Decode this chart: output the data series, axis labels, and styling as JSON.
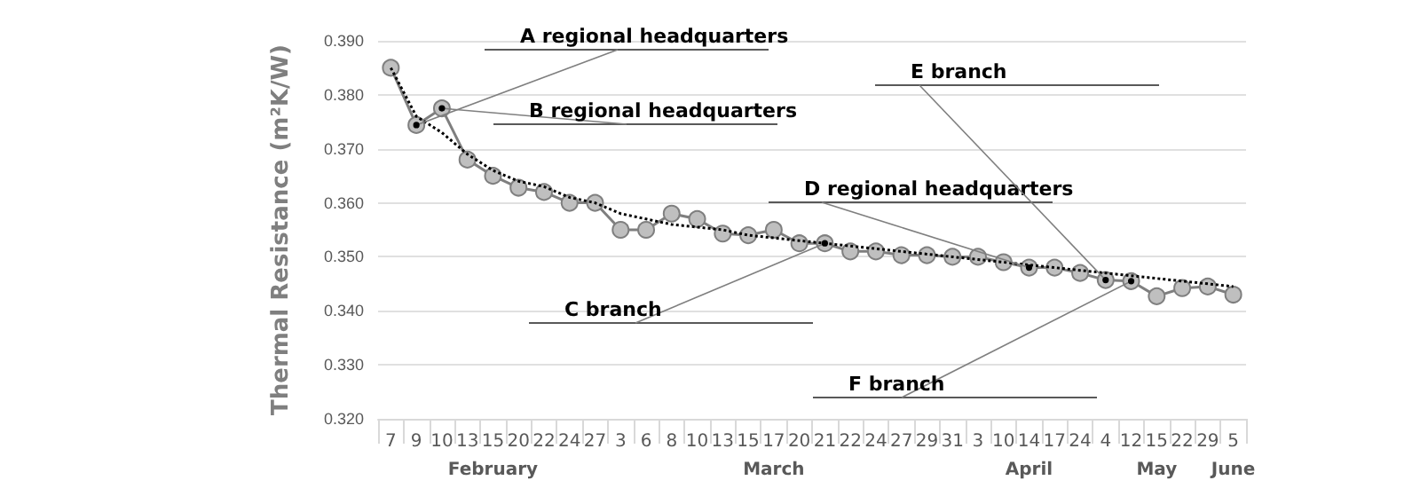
{
  "chart_data": {
    "type": "line",
    "ylabel": "Thermal Resistance (m²K/W)",
    "categories": [
      "7",
      "9",
      "10",
      "13",
      "15",
      "20",
      "22",
      "24",
      "27",
      "3",
      "6",
      "8",
      "10",
      "13",
      "15",
      "17",
      "20",
      "21",
      "22",
      "24",
      "27",
      "29",
      "31",
      "3",
      "10",
      "14",
      "17",
      "24",
      "4",
      "12",
      "15",
      "22",
      "29",
      "5"
    ],
    "series": [
      {
        "color": "#bfbfbf",
        "marker": "circle",
        "line_style": "solid",
        "values": [
          0.385,
          0.3744,
          0.3775,
          0.368,
          0.365,
          0.3628,
          0.362,
          0.36,
          0.36,
          0.355,
          0.355,
          0.358,
          0.357,
          0.3543,
          0.354,
          0.355,
          0.3525,
          0.3525,
          0.351,
          0.351,
          0.3503,
          0.3503,
          0.35,
          0.35,
          0.349,
          0.348,
          0.348,
          0.347,
          0.3457,
          0.3455,
          0.3427,
          0.3442,
          0.3445,
          0.343
        ]
      },
      {
        "color": "#000000",
        "marker": "none",
        "line_style": "dotted",
        "values": [
          0.385,
          0.376,
          0.373,
          0.369,
          0.366,
          0.364,
          0.363,
          0.361,
          0.36,
          0.358,
          0.357,
          0.356,
          0.3555,
          0.355,
          0.354,
          0.3535,
          0.353,
          0.3525,
          0.352,
          0.3515,
          0.351,
          0.3505,
          0.35,
          0.3495,
          0.349,
          0.3485,
          0.348,
          0.3475,
          0.347,
          0.3465,
          0.346,
          0.3455,
          0.345,
          0.3445
        ]
      }
    ],
    "ylim": [
      0.32,
      0.39
    ],
    "yticks": [
      {
        "value": 0.32,
        "label": "0.320"
      },
      {
        "value": 0.33,
        "label": "0.330"
      },
      {
        "value": 0.34,
        "label": "0.340"
      },
      {
        "value": 0.35,
        "label": "0.350"
      },
      {
        "value": 0.36,
        "label": "0.360"
      },
      {
        "value": 0.37,
        "label": "0.370"
      },
      {
        "value": 0.38,
        "label": "0.380"
      },
      {
        "value": 0.39,
        "label": "0.390"
      }
    ],
    "grid": "y",
    "annotations": [
      {
        "text": "A regional headquarters",
        "x": "9",
        "y": 0.3744
      },
      {
        "text": "B regional headquarters",
        "x": "10",
        "y": 0.3775
      },
      {
        "text": "C branch",
        "x": "21",
        "y": 0.3525
      },
      {
        "text": "D regional headquarters",
        "x": "14",
        "y": 0.348
      },
      {
        "text": "E branch",
        "x": "4",
        "y": 0.3457
      },
      {
        "text": "F branch",
        "x": "12",
        "y": 0.3455
      },
      {
        "text": "February"
      },
      {
        "text": "March"
      },
      {
        "text": "April"
      },
      {
        "text": "May"
      },
      {
        "text": "June"
      }
    ]
  }
}
